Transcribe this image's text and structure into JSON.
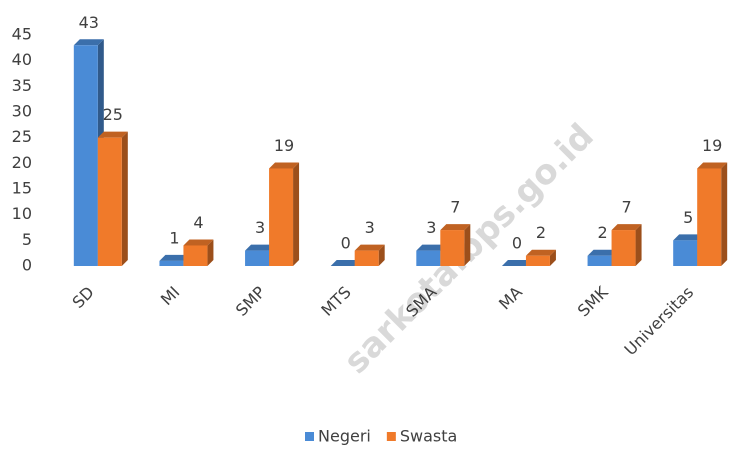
{
  "chart_data": {
    "type": "bar3d",
    "categories": [
      "SD",
      "MI",
      "SMP",
      "MTS",
      "SMA",
      "MA",
      "SMK",
      "Universitas"
    ],
    "series": [
      {
        "name": "Negeri",
        "color": "#4a8bd6",
        "values": [
          43,
          1,
          3,
          0,
          3,
          0,
          2,
          5
        ]
      },
      {
        "name": "Swasta",
        "color": "#f07a2a",
        "values": [
          25,
          4,
          19,
          3,
          7,
          2,
          7,
          19
        ]
      }
    ],
    "ylim": [
      0,
      45
    ],
    "yticks": [
      0,
      5,
      10,
      15,
      20,
      25,
      30,
      35,
      40,
      45
    ],
    "grid": false,
    "legend": "bottom",
    "watermark": "sarkota.bps.go.id"
  }
}
